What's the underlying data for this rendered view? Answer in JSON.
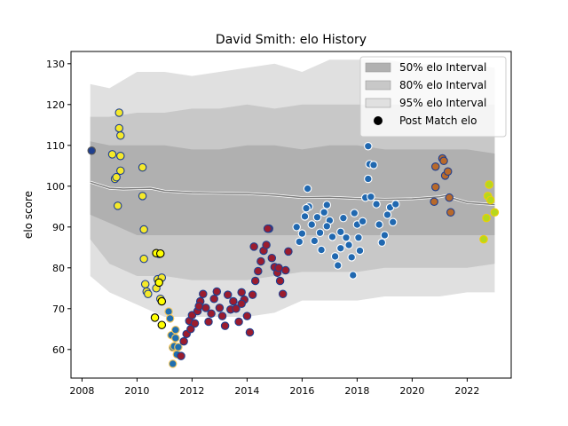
{
  "chart_data": {
    "type": "scatter",
    "title": "David Smith: elo History",
    "xlabel": "",
    "ylabel": "elo score",
    "xlim": [
      2007.6,
      2023.6
    ],
    "ylim": [
      53,
      133
    ],
    "x_ticks": [
      2008,
      2010,
      2012,
      2014,
      2016,
      2018,
      2020,
      2022
    ],
    "y_ticks": [
      60,
      70,
      80,
      90,
      100,
      110,
      120,
      130
    ],
    "grid": false,
    "legend_position": "top-right",
    "legend": [
      {
        "label": "50% elo Interval",
        "kind": "band",
        "color": "#b0b0b0"
      },
      {
        "label": "80% elo Interval",
        "kind": "band",
        "color": "#c8c8c8"
      },
      {
        "label": "95% elo Interval",
        "kind": "band",
        "color": "#e0e0e0"
      },
      {
        "label": "Post Match elo",
        "kind": "marker",
        "color": "#000000"
      }
    ],
    "band_colors": {
      "b95": "#e0e0e0",
      "b80": "#c8c8c8",
      "b50": "#b0b0b0"
    },
    "mean_line": {
      "color": "#7d7d7d",
      "points": [
        [
          2008.3,
          101
        ],
        [
          2009,
          99.5
        ],
        [
          2009.5,
          99.3
        ],
        [
          2010.5,
          99.5
        ],
        [
          2011,
          98.8
        ],
        [
          2012,
          98.4
        ],
        [
          2013,
          98.3
        ],
        [
          2014,
          98.2
        ],
        [
          2015,
          97.8
        ],
        [
          2016,
          97.2
        ],
        [
          2017,
          97.3
        ],
        [
          2018,
          97.0
        ],
        [
          2019,
          96.8
        ],
        [
          2020,
          96.9
        ],
        [
          2021,
          97.4
        ],
        [
          2021.3,
          97.8
        ],
        [
          2021.5,
          97.0
        ],
        [
          2022,
          96.0
        ],
        [
          2023,
          95.5
        ]
      ]
    },
    "bands": {
      "x": [
        2008.3,
        2009,
        2010,
        2011,
        2012,
        2013,
        2014,
        2015,
        2016,
        2017,
        2018,
        2019,
        2020,
        2021,
        2022,
        2023
      ],
      "b95_upper": [
        125,
        124,
        128,
        128,
        127,
        128,
        129,
        130,
        128,
        131,
        131,
        131,
        130,
        130,
        130,
        129
      ],
      "b95_lower": [
        78,
        74,
        71,
        68,
        68,
        68,
        68,
        69,
        72,
        72,
        72,
        73,
        73,
        73,
        74,
        74
      ],
      "b80_upper": [
        117,
        117,
        118,
        118,
        119,
        119,
        120,
        119,
        120,
        120,
        120,
        120,
        120,
        120,
        120,
        120
      ],
      "b80_lower": [
        87,
        81,
        78,
        78,
        77,
        77,
        77,
        78,
        79,
        79,
        79,
        80,
        80,
        80,
        80,
        81
      ],
      "b50_upper": [
        111,
        110,
        110,
        110,
        109,
        109,
        110,
        110,
        109,
        110,
        110,
        109,
        109,
        109,
        109,
        108
      ],
      "b50_lower": [
        93,
        91,
        88,
        88,
        88,
        88,
        88,
        88,
        88,
        88,
        88,
        88,
        88,
        88,
        88,
        88
      ]
    },
    "series": [
      {
        "fill": "#1f3f8f",
        "stroke": "#555555",
        "points": [
          [
            2008.35,
            108.7
          ]
        ]
      },
      {
        "fill": "#f5e92a",
        "stroke": "#1f3f8f",
        "points": [
          [
            2009.1,
            107.8
          ],
          [
            2009.2,
            101.8
          ],
          [
            2009.25,
            102.2
          ],
          [
            2009.3,
            95.2
          ],
          [
            2009.35,
            118.0
          ],
          [
            2009.35,
            114.2
          ],
          [
            2009.4,
            112.4
          ],
          [
            2009.4,
            107.4
          ],
          [
            2009.4,
            103.8
          ],
          [
            2010.2,
            104.6
          ],
          [
            2010.2,
            97.6
          ],
          [
            2010.25,
            89.4
          ],
          [
            2010.25,
            82.2
          ],
          [
            2010.3,
            76.0
          ],
          [
            2010.35,
            74.2
          ],
          [
            2010.4,
            73.6
          ],
          [
            2010.7,
            75.0
          ],
          [
            2010.75,
            77.2
          ],
          [
            2010.8,
            83.4
          ],
          [
            2010.85,
            72.4
          ],
          [
            2010.9,
            77.6
          ]
        ]
      },
      {
        "fill": "#ffff00",
        "stroke": "#000000",
        "points": [
          [
            2010.65,
            67.8
          ],
          [
            2010.7,
            83.6
          ],
          [
            2010.8,
            76.4
          ],
          [
            2010.85,
            83.5
          ],
          [
            2010.9,
            71.8
          ],
          [
            2010.9,
            66.0
          ]
        ]
      },
      {
        "fill": "#1f6fb0",
        "stroke": "#f5c55a",
        "points": [
          [
            2011.15,
            69.3
          ],
          [
            2011.2,
            67.6
          ],
          [
            2011.25,
            63.5
          ],
          [
            2011.3,
            60.5
          ],
          [
            2011.3,
            56.5
          ],
          [
            2011.35,
            60.8
          ],
          [
            2011.4,
            62.8
          ],
          [
            2011.4,
            64.8
          ],
          [
            2011.45,
            58.8
          ],
          [
            2011.5,
            60.6
          ]
        ]
      },
      {
        "fill": "#9b1c2e",
        "stroke": "#1f3f8f",
        "points": [
          [
            2011.6,
            58.4
          ],
          [
            2011.7,
            62.0
          ],
          [
            2011.8,
            63.8
          ],
          [
            2011.9,
            67.0
          ],
          [
            2012.0,
            68.4
          ],
          [
            2012.1,
            66.4
          ],
          [
            2012.2,
            69.4
          ],
          [
            2012.3,
            71.8
          ],
          [
            2012.4,
            73.6
          ],
          [
            2012.5,
            70.2
          ],
          [
            2012.6,
            66.8
          ],
          [
            2012.7,
            68.8
          ],
          [
            2012.8,
            72.4
          ],
          [
            2012.9,
            74.2
          ],
          [
            2013.0,
            70.2
          ],
          [
            2013.1,
            68.2
          ],
          [
            2013.2,
            65.8
          ],
          [
            2013.3,
            73.4
          ],
          [
            2013.4,
            69.8
          ],
          [
            2013.5,
            71.8
          ],
          [
            2013.6,
            70.0
          ],
          [
            2013.7,
            66.8
          ],
          [
            2013.8,
            74.0
          ],
          [
            2013.9,
            72.2
          ],
          [
            2014.0,
            68.2
          ],
          [
            2014.1,
            64.2
          ],
          [
            2014.2,
            73.4
          ],
          [
            2014.3,
            76.8
          ],
          [
            2014.4,
            79.2
          ],
          [
            2014.5,
            81.6
          ],
          [
            2014.6,
            84.2
          ],
          [
            2014.7,
            85.6
          ],
          [
            2014.8,
            89.6
          ],
          [
            2014.9,
            82.4
          ],
          [
            2015.0,
            80.2
          ],
          [
            2015.1,
            78.8
          ],
          [
            2015.2,
            76.8
          ],
          [
            2015.3,
            73.6
          ],
          [
            2015.4,
            79.4
          ],
          [
            2015.5,
            84.0
          ],
          [
            2015.15,
            80.0
          ],
          [
            2014.75,
            89.6
          ],
          [
            2014.25,
            85.2
          ],
          [
            2013.8,
            71.2
          ],
          [
            2012.25,
            70.6
          ],
          [
            2011.95,
            65.0
          ]
        ]
      },
      {
        "fill": "#2068b0",
        "stroke": "#ffffff",
        "points": [
          [
            2015.8,
            90.0
          ],
          [
            2015.9,
            86.4
          ],
          [
            2016.0,
            88.4
          ],
          [
            2016.1,
            92.6
          ],
          [
            2016.2,
            99.4
          ],
          [
            2016.25,
            95.0
          ],
          [
            2016.35,
            90.6
          ],
          [
            2016.45,
            86.6
          ],
          [
            2016.55,
            92.4
          ],
          [
            2016.65,
            88.6
          ],
          [
            2016.7,
            84.4
          ],
          [
            2016.8,
            93.6
          ],
          [
            2016.9,
            95.4
          ],
          [
            2017.0,
            91.6
          ],
          [
            2017.1,
            87.6
          ],
          [
            2017.2,
            82.8
          ],
          [
            2017.3,
            80.6
          ],
          [
            2017.4,
            88.8
          ],
          [
            2017.5,
            92.2
          ],
          [
            2017.6,
            87.4
          ],
          [
            2017.7,
            85.6
          ],
          [
            2017.8,
            82.6
          ],
          [
            2017.85,
            78.2
          ],
          [
            2017.9,
            93.4
          ],
          [
            2018.0,
            90.6
          ],
          [
            2018.05,
            87.4
          ],
          [
            2018.1,
            84.2
          ],
          [
            2018.2,
            91.4
          ],
          [
            2018.3,
            97.2
          ],
          [
            2018.4,
            101.8
          ],
          [
            2018.45,
            105.4
          ],
          [
            2018.4,
            109.8
          ],
          [
            2018.5,
            97.4
          ],
          [
            2018.6,
            105.2
          ],
          [
            2018.7,
            95.6
          ],
          [
            2018.8,
            90.6
          ],
          [
            2018.9,
            86.2
          ],
          [
            2019.0,
            88.0
          ],
          [
            2019.1,
            93.0
          ],
          [
            2019.2,
            94.8
          ],
          [
            2019.3,
            91.2
          ],
          [
            2019.4,
            95.6
          ],
          [
            2016.9,
            90.2
          ],
          [
            2017.4,
            84.8
          ],
          [
            2016.15,
            94.6
          ]
        ]
      },
      {
        "fill": "#b8692a",
        "stroke": "#1f3f8f",
        "points": [
          [
            2020.8,
            96.2
          ],
          [
            2020.85,
            99.8
          ],
          [
            2020.85,
            104.8
          ],
          [
            2021.1,
            106.8
          ],
          [
            2021.15,
            106.2
          ],
          [
            2021.2,
            102.6
          ],
          [
            2021.3,
            103.6
          ],
          [
            2021.35,
            97.2
          ],
          [
            2021.4,
            93.6
          ]
        ]
      },
      {
        "fill": "#b6d81e",
        "stroke": "#f0d000",
        "points": [
          [
            2022.6,
            87.0
          ],
          [
            2022.7,
            92.2
          ],
          [
            2022.75,
            97.6
          ],
          [
            2022.8,
            100.4
          ],
          [
            2022.85,
            96.6
          ],
          [
            2023.0,
            93.6
          ]
        ]
      }
    ]
  }
}
